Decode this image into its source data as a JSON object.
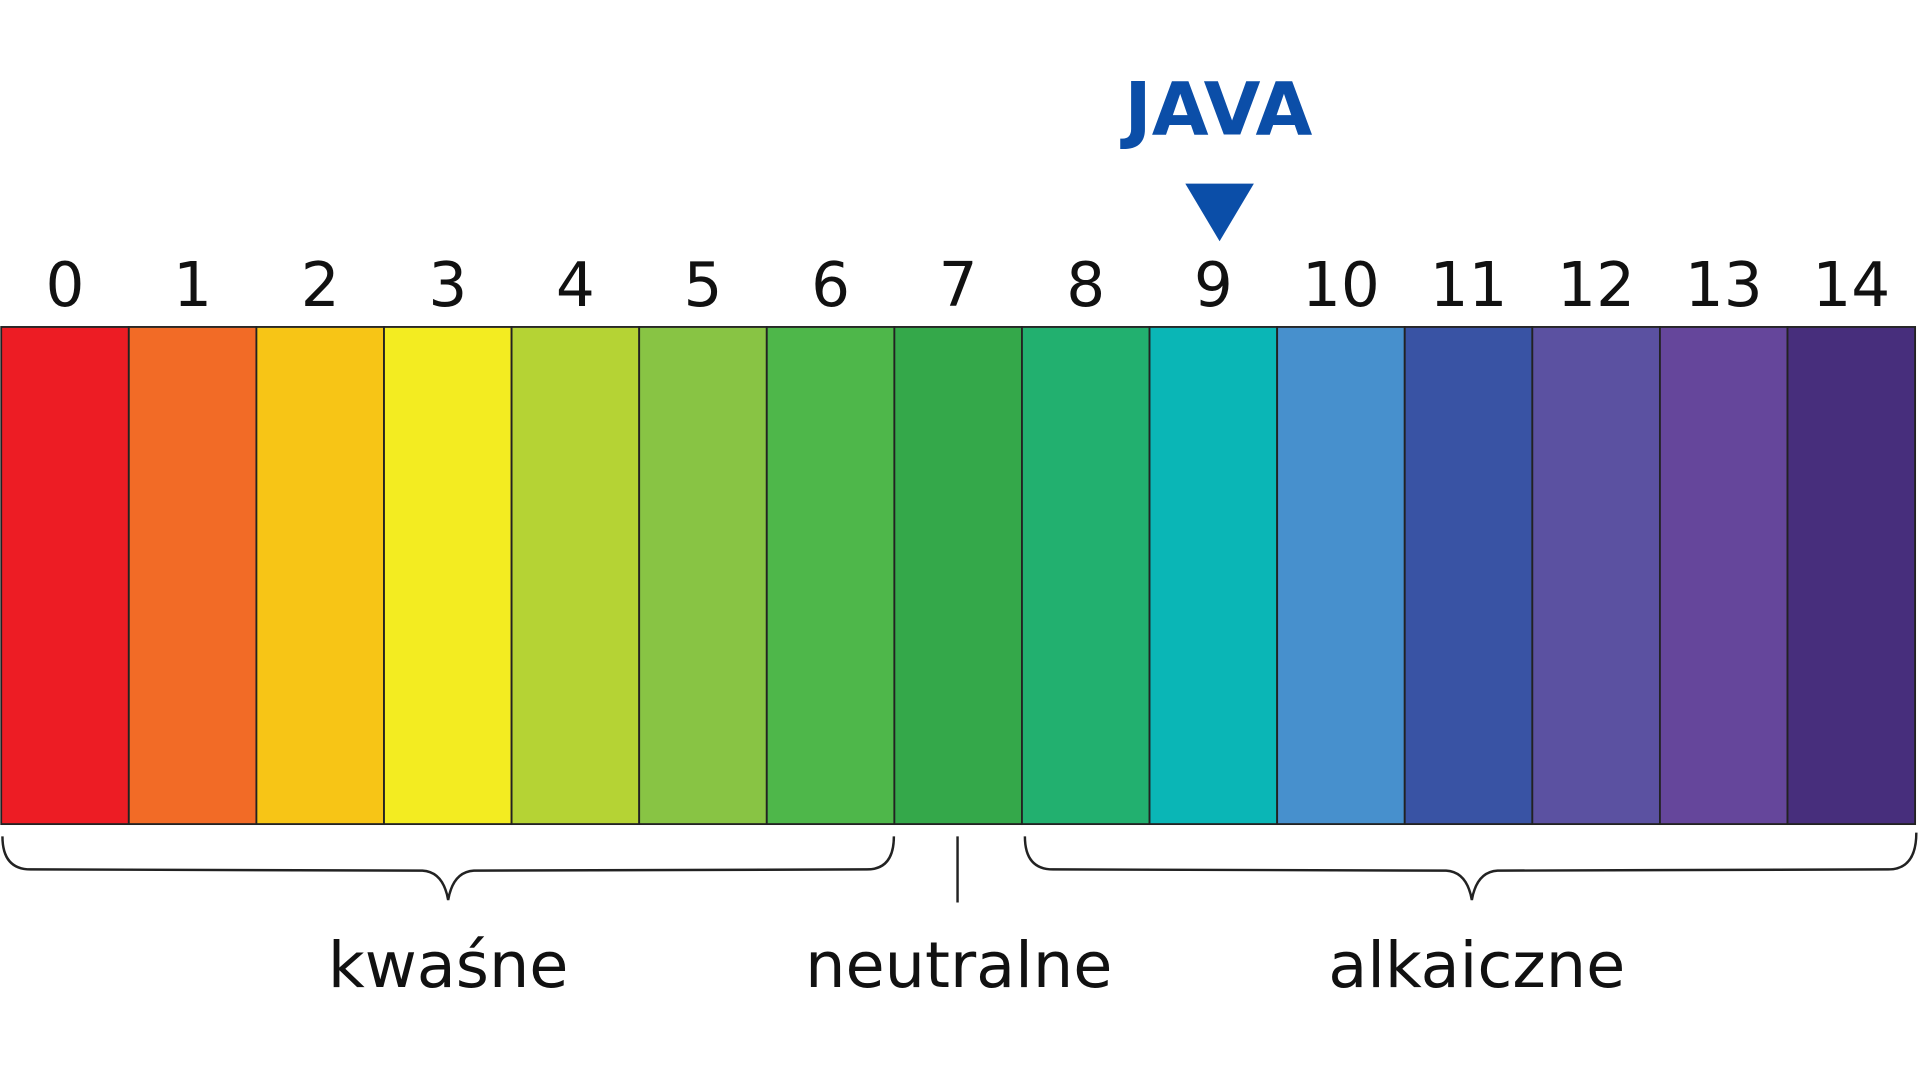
{
  "scale": {
    "cells": [
      {
        "label": "0",
        "color": "#ed1c24"
      },
      {
        "label": "1",
        "color": "#f26b26"
      },
      {
        "label": "2",
        "color": "#f7c516"
      },
      {
        "label": "3",
        "color": "#f3ec21"
      },
      {
        "label": "4",
        "color": "#b5d334"
      },
      {
        "label": "5",
        "color": "#88c444"
      },
      {
        "label": "6",
        "color": "#4eb74a"
      },
      {
        "label": "7",
        "color": "#34a84a"
      },
      {
        "label": "8",
        "color": "#22b06f"
      },
      {
        "label": "9",
        "color": "#0ab6b6"
      },
      {
        "label": "10",
        "color": "#4790cd"
      },
      {
        "label": "11",
        "color": "#3953a4"
      },
      {
        "label": "12",
        "color": "#5b51a1"
      },
      {
        "label": "13",
        "color": "#65469b"
      },
      {
        "label": "14",
        "color": "#472e7c"
      }
    ]
  },
  "marker": {
    "label": "JAVA"
  },
  "groups": {
    "acidic": "kwaśne",
    "neutral": "neutralne",
    "alkaline": "alkaiczne"
  }
}
